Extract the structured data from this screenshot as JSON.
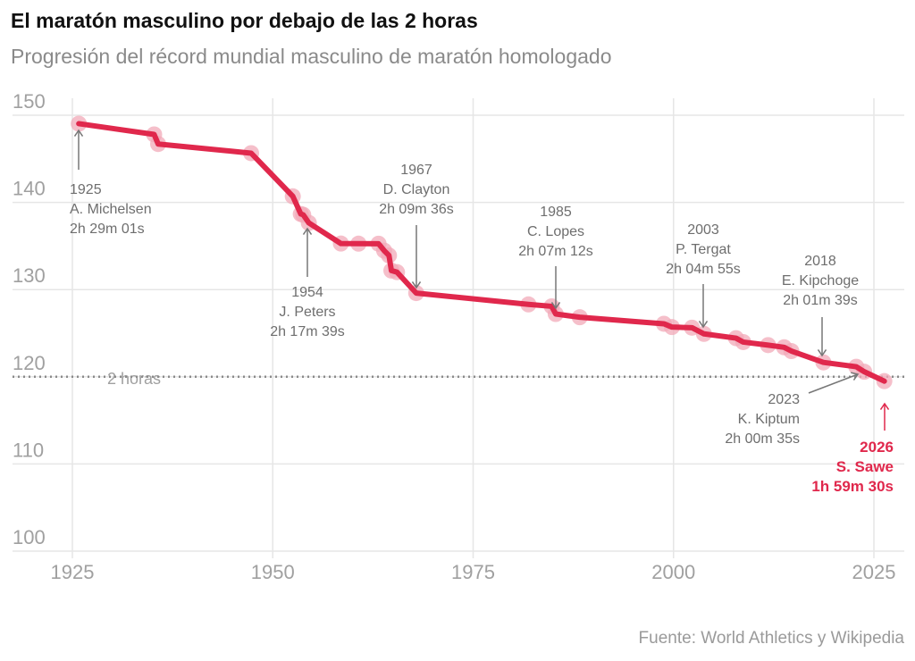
{
  "chart_data": {
    "type": "line",
    "title": "El maratón masculino por debajo de las 2 horas",
    "subtitle": "Progresión del récord mundial masculino de maratón homologado",
    "source": "Fuente: World Athletics y Wikipedia",
    "xlabel": "",
    "ylabel": "",
    "xlim": [
      1924,
      2028
    ],
    "ylim": [
      100,
      150
    ],
    "x_ticks": [
      1925,
      1950,
      1975,
      2000,
      2025
    ],
    "y_ticks": [
      100,
      110,
      120,
      130,
      140,
      150
    ],
    "grid": true,
    "reference_line": {
      "value": 120,
      "label": "2 horas"
    },
    "colors": {
      "line": "#e0284c",
      "marker": "#f2a9b8",
      "grid": "#e6e6e6",
      "text": "#6e6e6e"
    },
    "x": [
      1925.8,
      1935.2,
      1935.7,
      1947.3,
      1952.5,
      1953.5,
      1953.8,
      1954.5,
      1958.5,
      1960.7,
      1963.2,
      1963.9,
      1964.5,
      1964.8,
      1965.5,
      1967.9,
      1981.9,
      1984.8,
      1985.3,
      1988.3,
      1998.8,
      1999.8,
      2002.3,
      2003.8,
      2007.8,
      2008.7,
      2011.8,
      2013.8,
      2014.7,
      2018.7,
      2022.8,
      2023.8,
      2026.3
    ],
    "y": [
      149.03,
      147.8,
      146.7,
      145.65,
      140.7,
      138.67,
      138.58,
      137.65,
      135.28,
      135.27,
      135.26,
      134.47,
      133.92,
      132.18,
      132.0,
      129.6,
      128.3,
      128.08,
      127.2,
      126.83,
      126.08,
      125.7,
      125.63,
      124.92,
      124.43,
      123.98,
      123.63,
      123.38,
      122.95,
      121.65,
      121.15,
      120.58,
      119.5
    ],
    "annotations": [
      {
        "year": "1925",
        "name": "A. Michelsen",
        "time": "2h 29m 01s"
      },
      {
        "year": "1954",
        "name": "J. Peters",
        "time": "2h 17m 39s"
      },
      {
        "year": "1967",
        "name": "D. Clayton",
        "time": "2h 09m 36s"
      },
      {
        "year": "1985",
        "name": "C. Lopes",
        "time": "2h 07m 12s"
      },
      {
        "year": "2003",
        "name": "P. Tergat",
        "time": "2h 04m 55s"
      },
      {
        "year": "2018",
        "name": "E. Kipchoge",
        "time": "2h 01m 39s"
      },
      {
        "year": "2023",
        "name": "K. Kiptum",
        "time": "2h 00m 35s"
      },
      {
        "year": "2026",
        "name": "S. Sawe",
        "time": "1h 59m 30s",
        "highlight": true
      }
    ]
  }
}
